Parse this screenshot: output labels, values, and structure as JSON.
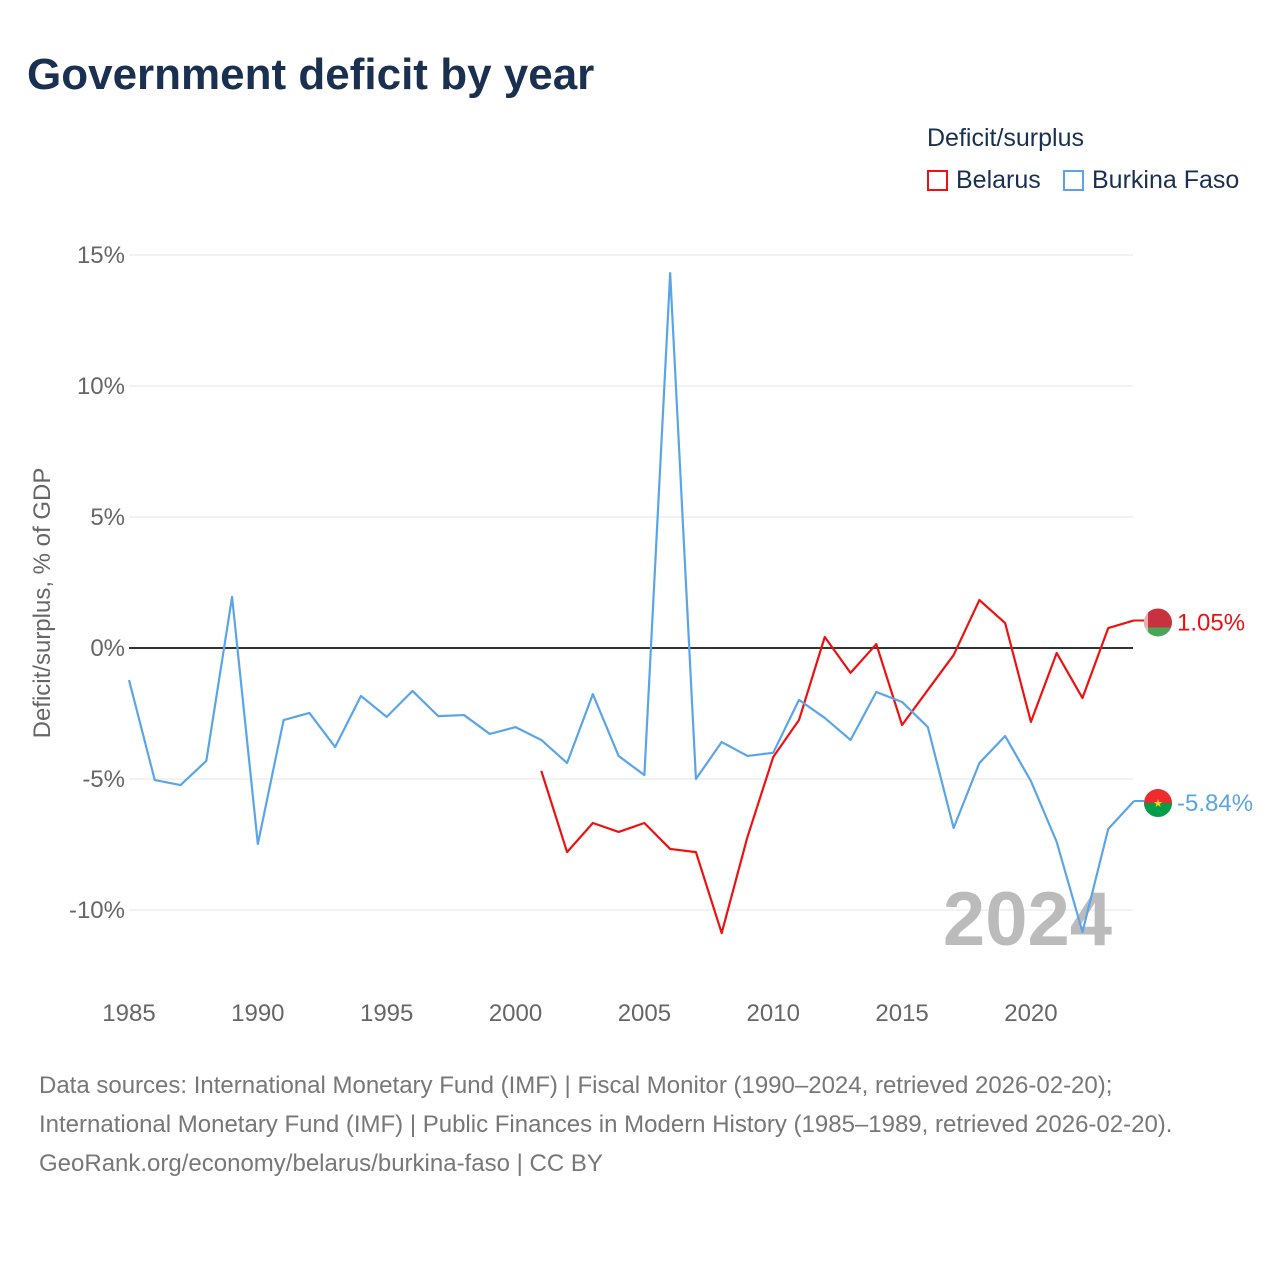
{
  "title": "Government deficit by year",
  "legend": {
    "title": "Deficit/surplus",
    "position": "top-right"
  },
  "footer": {
    "sources": "Data sources: International Monetary Fund (IMF) | Fiscal Monitor (1990–2024, retrieved 2026-02-20); International Monetary Fund (IMF) | Public Finances in Modern History (1985–1989, retrieved 2026-02-20).",
    "credit": "GeoRank.org/economy/belarus/burkina-faso | CC BY"
  },
  "chart_data": {
    "type": "line",
    "title": "Government deficit by year",
    "xlabel": "",
    "ylabel": "Deficit/surplus, % of GDP",
    "xlim": [
      1985,
      2024
    ],
    "ylim": [
      -12.5,
      15
    ],
    "xticks": [
      1985,
      1990,
      1995,
      2000,
      2005,
      2010,
      2015,
      2020
    ],
    "xtick_labels": [
      "1985",
      "1990",
      "1995",
      "2000",
      "2005",
      "2010",
      "2015",
      "2020"
    ],
    "yticks": [
      15,
      10,
      5,
      0,
      -5,
      -10
    ],
    "ytick_labels": [
      "15%",
      "10%",
      "5%",
      "0%",
      "-5%",
      "-10%"
    ],
    "grid": true,
    "year_watermark": "2024",
    "series": [
      {
        "name": "Belarus",
        "color": "#ee1111",
        "end_label": "1.05%",
        "x": [
          2001,
          2002,
          2003,
          2004,
          2005,
          2006,
          2007,
          2008,
          2009,
          2010,
          2011,
          2012,
          2013,
          2014,
          2015,
          2016,
          2017,
          2018,
          2019,
          2020,
          2021,
          2022,
          2023,
          2024
        ],
        "values": [
          -4.69,
          -7.79,
          -6.68,
          -7.02,
          -6.68,
          -7.67,
          -7.79,
          -10.88,
          -7.21,
          -4.16,
          -2.75,
          0.42,
          -0.95,
          0.15,
          -2.94,
          -1.6,
          -0.27,
          1.83,
          0.95,
          -2.82,
          -0.19,
          -1.91,
          0.76,
          1.05
        ]
      },
      {
        "name": "Burkina Faso",
        "color": "#5aa5e8",
        "end_label": "-5.84%",
        "x": [
          1985,
          1986,
          1987,
          1988,
          1989,
          1990,
          1991,
          1992,
          1993,
          1994,
          1995,
          1996,
          1997,
          1998,
          1999,
          2000,
          2001,
          2002,
          2003,
          2004,
          2005,
          2006,
          2007,
          2008,
          2009,
          2010,
          2011,
          2012,
          2013,
          2014,
          2015,
          2016,
          2017,
          2018,
          2019,
          2020,
          2021,
          2022,
          2023,
          2024
        ],
        "values": [
          -1.22,
          -5.04,
          -5.23,
          -4.31,
          1.95,
          -7.48,
          -2.75,
          -2.48,
          -3.78,
          -1.83,
          -2.63,
          -1.64,
          -2.6,
          -2.56,
          -3.28,
          -3.02,
          -3.51,
          -4.39,
          -1.76,
          -4.12,
          -4.85,
          14.31,
          -5.0,
          -3.59,
          -4.12,
          -4.0,
          -1.98,
          -2.67,
          -3.51,
          -1.68,
          -2.06,
          -3.02,
          -6.87,
          -4.39,
          -3.36,
          -5.08,
          -7.4,
          -10.84,
          -6.91,
          -5.84
        ]
      }
    ]
  }
}
